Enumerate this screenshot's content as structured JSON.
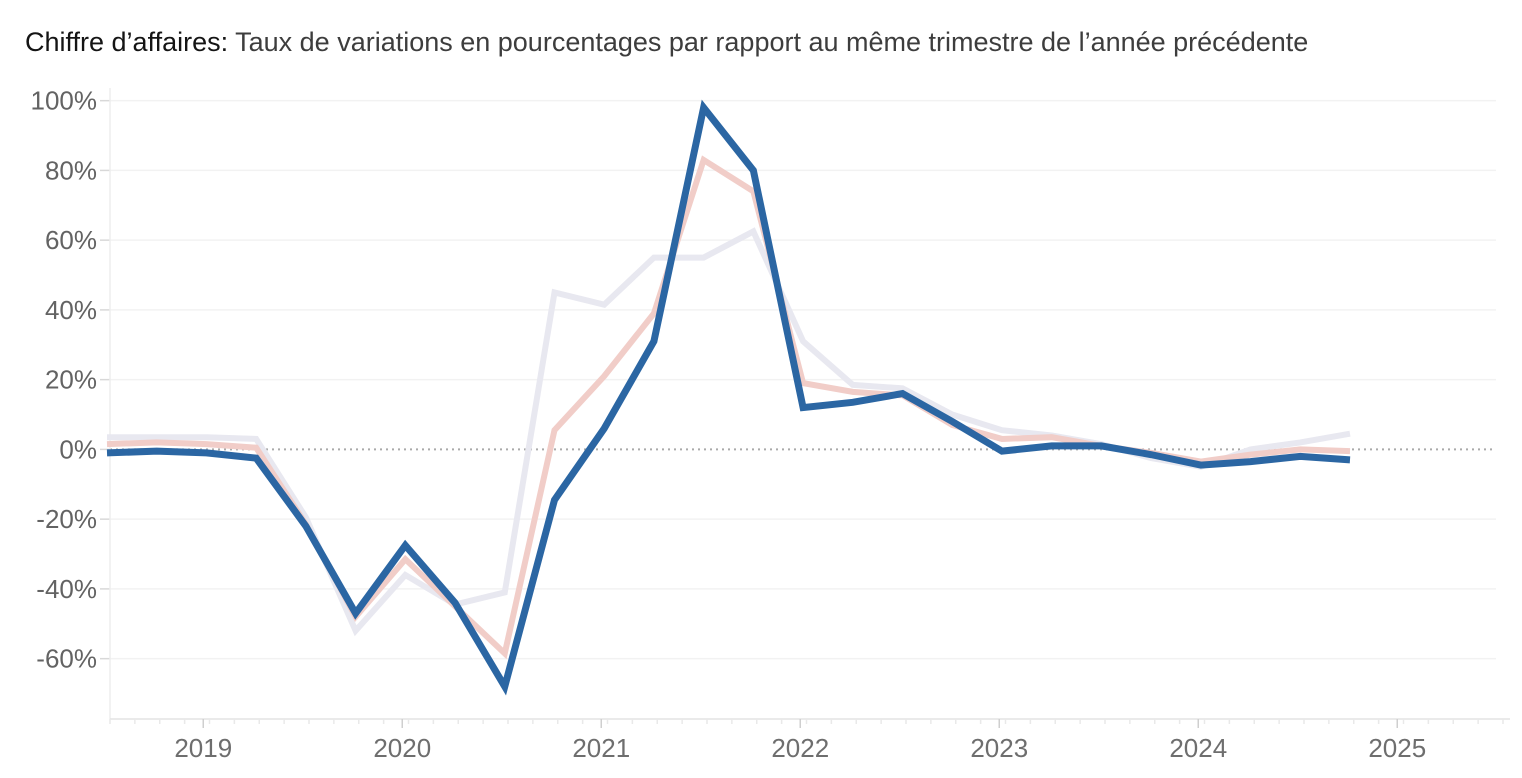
{
  "title": {
    "prefix": "Chiffre d’affaires:",
    "rest": " Taux de variations en pourcentages par rapport au même trimestre de l’année précédente"
  },
  "chart_data": {
    "type": "line",
    "title": "Chiffre d’affaires: Taux de variations en pourcentages par rapport au même trimestre de l’année précédente",
    "xlabel": "",
    "ylabel": "",
    "grid": true,
    "legend": "none",
    "ylim": [
      -77,
      103
    ],
    "y_ticks": [
      100,
      80,
      60,
      40,
      20,
      0,
      -20,
      -40,
      -60
    ],
    "y_tick_labels": [
      "100%",
      "80%",
      "60%",
      "40%",
      "20%",
      "0%",
      "-20%",
      "-40%",
      "-60%"
    ],
    "x_years": [
      "2019",
      "2020",
      "2021",
      "2022",
      "2023",
      "2024",
      "2025"
    ],
    "zero_line_style": "dotted",
    "categories": [
      "2018-T2",
      "2018-T3",
      "2018-T4",
      "2019-T1",
      "2019-T2",
      "2019-T3",
      "2019-T4",
      "2020-T1",
      "2020-T2",
      "2020-T3",
      "2020-T4",
      "2021-T1",
      "2021-T2",
      "2021-T3",
      "2021-T4",
      "2022-T1",
      "2022-T2",
      "2022-T3",
      "2022-T4",
      "2023-T1",
      "2023-T2",
      "2023-T3",
      "2023-T4",
      "2024-T1",
      "2024-T2",
      "2024-T3"
    ],
    "series": [
      {
        "name": "ligne-grise",
        "color": "#e8e8f0",
        "stroke_width": 6,
        "values": [
          3.5,
          3.5,
          3.5,
          3,
          -19.5,
          -52,
          -36,
          -44.5,
          -41,
          45,
          41.5,
          55,
          55,
          62.5,
          31,
          18.5,
          17.5,
          10,
          5.5,
          4,
          1.5,
          -2.5,
          -5,
          0,
          2,
          4.5
        ]
      },
      {
        "name": "ligne-rose",
        "color": "#f1cdc8",
        "stroke_width": 6,
        "values": [
          1.5,
          2,
          1.5,
          0.5,
          -21.5,
          -48,
          -31.5,
          -45,
          -58.5,
          5.5,
          21,
          39,
          83,
          74,
          19,
          16.5,
          15.5,
          7,
          3,
          3.5,
          1,
          -1,
          -3.5,
          -1.5,
          0,
          -0.5
        ]
      },
      {
        "name": "ligne-bleue",
        "color": "#2b66a3",
        "stroke_width": 7,
        "values": [
          -1,
          -0.5,
          -1,
          -2.5,
          -22,
          -47,
          -27.5,
          -44,
          -68,
          -14.5,
          6,
          31,
          98,
          80,
          12,
          13.5,
          16,
          8,
          -0.5,
          1,
          1,
          -1.5,
          -4.5,
          -3.5,
          -2,
          -3
        ]
      }
    ],
    "colors": {
      "gridline": "#f2f2f2",
      "zero_line": "#aaaaaa",
      "axis_line": "#e3e3e3",
      "domain_line": "#ededed",
      "y_tick": "#d8d8d8",
      "x_tick_minor": "#e9e9e9",
      "x_tick_year": "#cfcfcf"
    }
  }
}
